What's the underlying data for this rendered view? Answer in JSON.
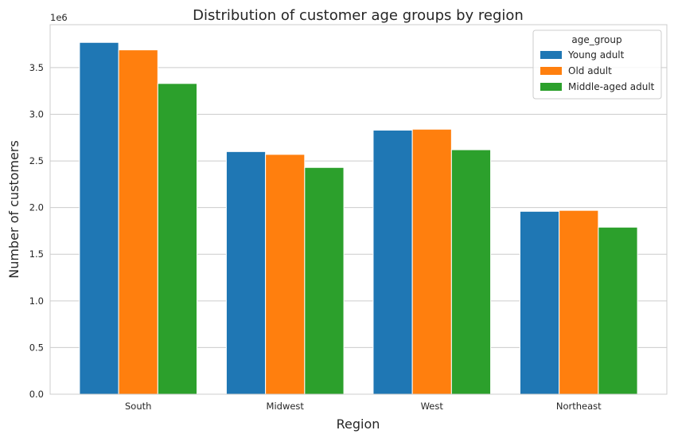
{
  "chart_data": {
    "type": "bar",
    "title": "Distribution of customer age groups by region",
    "xlabel": "Region",
    "ylabel": "Number of customers",
    "y_offset_label": "1e6",
    "categories": [
      "South",
      "Midwest",
      "West",
      "Northeast"
    ],
    "series": [
      {
        "name": "Young adult",
        "color": "#1f77b4",
        "values": [
          3.77,
          2.6,
          2.83,
          1.96
        ]
      },
      {
        "name": "Old adult",
        "color": "#ff7f0e",
        "values": [
          3.69,
          2.57,
          2.84,
          1.97
        ]
      },
      {
        "name": "Middle-aged adult",
        "color": "#2ca02c",
        "values": [
          3.33,
          2.43,
          2.62,
          1.79
        ]
      }
    ],
    "ylim": [
      0,
      3.96
    ],
    "yticks": [
      "0.0",
      "0.5",
      "1.0",
      "1.5",
      "2.0",
      "2.5",
      "3.0",
      "3.5"
    ],
    "grid": true,
    "legend": {
      "title": "age_group",
      "position": "top-right"
    }
  }
}
